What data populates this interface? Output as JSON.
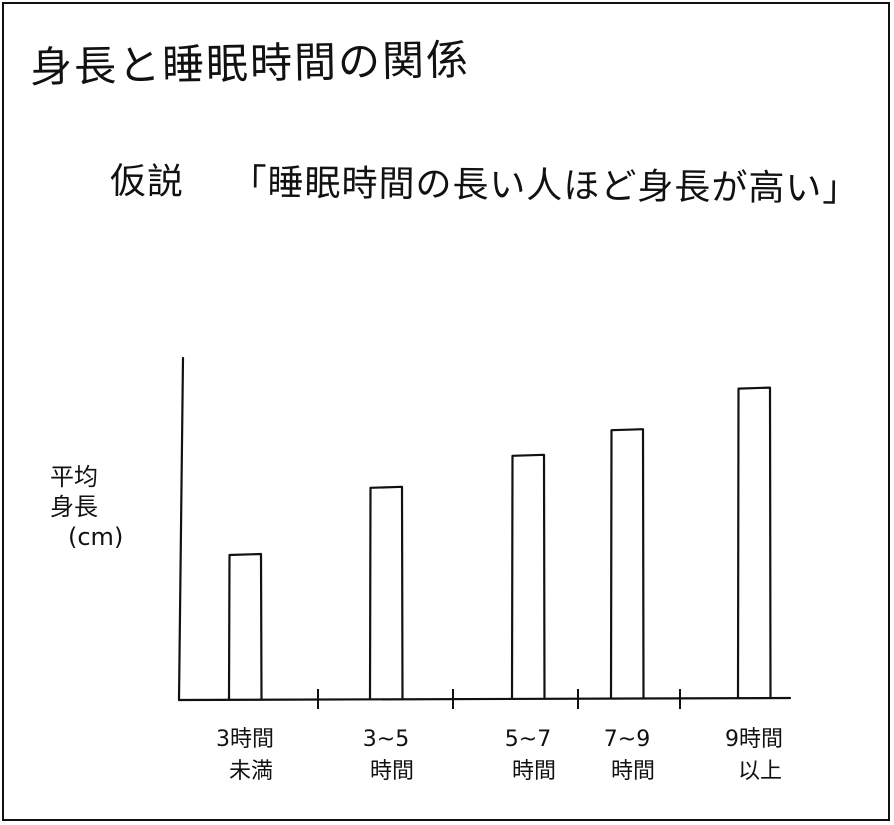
{
  "page": {
    "title": "身長と睡眠時間の関係",
    "hypothesis_label": "仮説",
    "hypothesis_text": "「睡眠時間の長い人ほど身長が高い」"
  },
  "chart_data": {
    "type": "bar",
    "title": "身長と睡眠時間の関係",
    "subtitle": "仮説 「睡眠時間の長い人ほど身長が高い」",
    "xlabel": "",
    "ylabel_lines": [
      "平均",
      "身長",
      "(cm)"
    ],
    "categories": [
      [
        "3時間",
        "未満"
      ],
      [
        "3~5",
        "時間"
      ],
      [
        "5~7",
        "時間"
      ],
      [
        "7~9",
        "時間"
      ],
      [
        "9時間",
        "以上"
      ]
    ],
    "values": [
      0.45,
      0.66,
      0.76,
      0.84,
      0.97
    ],
    "value_scale": "relative (no y-axis ticks shown)",
    "ylim": [
      0,
      1.0
    ],
    "grid": false,
    "legend": "none"
  }
}
